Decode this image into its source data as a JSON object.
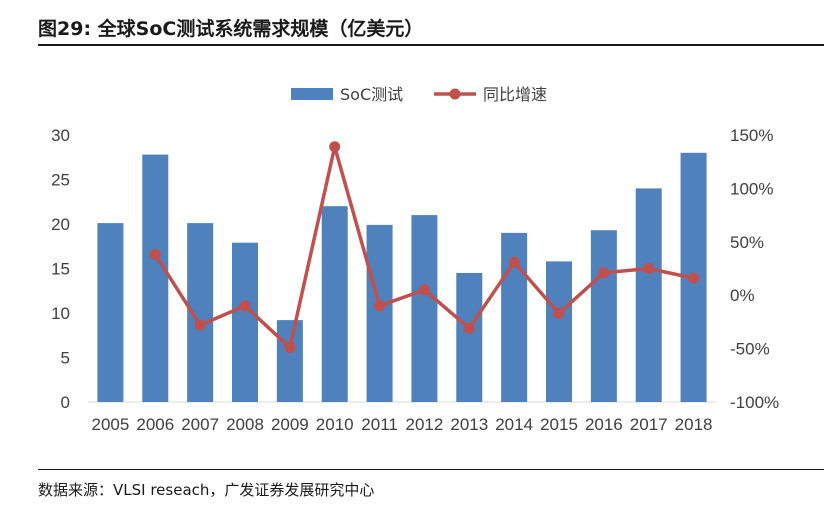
{
  "header": {
    "figure_label": "图29:",
    "title": "全球SoC测试系统需求规模（亿美元）"
  },
  "footer": {
    "source": "数据来源：VLSI reseach，广发证券发展研究中心"
  },
  "colors": {
    "bar": "#4f81bd",
    "line": "#c0504d",
    "axis_text": "#404040"
  },
  "chart_data": {
    "type": "bar",
    "title": "",
    "categories": [
      "2005",
      "2006",
      "2007",
      "2008",
      "2009",
      "2010",
      "2011",
      "2012",
      "2013",
      "2014",
      "2015",
      "2016",
      "2017",
      "2018"
    ],
    "series": [
      {
        "name": "SoC测试",
        "type": "bar",
        "axis": "left",
        "values": [
          20.1,
          27.8,
          20.1,
          17.9,
          9.2,
          22.0,
          19.9,
          21.0,
          14.5,
          19.0,
          15.8,
          19.3,
          24.0,
          28.0
        ]
      },
      {
        "name": "同比增速",
        "type": "line",
        "axis": "right",
        "values": [
          null,
          38,
          -28,
          -10,
          -49,
          139,
          -10,
          5,
          -31,
          31,
          -17,
          21,
          25,
          16
        ]
      }
    ],
    "y_left": {
      "min": 0,
      "max": 30,
      "ticks": [
        "0",
        "5",
        "10",
        "15",
        "20",
        "25",
        "30"
      ],
      "tick_values": [
        0,
        5,
        10,
        15,
        20,
        25,
        30
      ]
    },
    "y_right": {
      "min": -100,
      "max": 150,
      "ticks": [
        "-100%",
        "-50%",
        "0%",
        "50%",
        "100%",
        "150%"
      ],
      "tick_values": [
        -100,
        -50,
        0,
        50,
        100,
        150
      ]
    },
    "legend_position": "top-center",
    "grid": false
  }
}
